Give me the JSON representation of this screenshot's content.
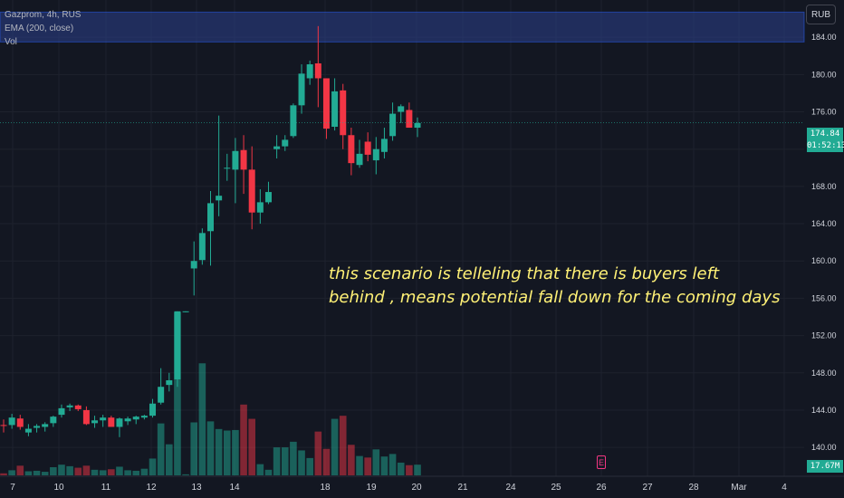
{
  "legend": {
    "symbol": "Gazprom, 4h, RUS",
    "indicator": "EMA (200, close)",
    "volume": "Vol"
  },
  "currency_label": "RUB",
  "last_price": "174.84",
  "countdown": "01:52:13",
  "volume_tag": "17.67M",
  "annotation": {
    "line1": "this scenario is telleling that there is buyers left",
    "line2": "behind , means potential fall down for the coming days"
  },
  "event_icon": "earnings-event-icon",
  "colors": {
    "background": "#131722",
    "up": "#22ab94",
    "down": "#f23645",
    "up_volume": "#22ab94",
    "down_volume": "#f23645",
    "grid": "#1e222d",
    "axis_text": "#d1d4dc",
    "zone": "#2b3f8c",
    "annotation": "#fff176"
  },
  "chart_data": {
    "type": "candlestick",
    "title": "Gazprom, 4h, RUS",
    "ylabel": "RUB",
    "ylim": [
      137,
      188
    ],
    "y_ticks": [
      "184.00",
      "180.00",
      "176.00",
      "172.00",
      "168.00",
      "164.00",
      "160.00",
      "156.00",
      "152.00",
      "148.00",
      "144.00",
      "140.00"
    ],
    "x_ticks": [
      "7",
      "10",
      "11",
      "12",
      "13",
      "14",
      "18",
      "19",
      "20",
      "21",
      "24",
      "25",
      "26",
      "27",
      "28",
      "Mar",
      "4"
    ],
    "current_price": 174.84,
    "resistance_zone": [
      183.5,
      186.7
    ],
    "candles": [
      {
        "o": 142.4,
        "h": 143.0,
        "l": 141.6,
        "c": 142.3,
        "v": 0.4
      },
      {
        "o": 142.4,
        "h": 143.6,
        "l": 142.0,
        "c": 143.2,
        "v": 1.0
      },
      {
        "o": 143.1,
        "h": 143.5,
        "l": 141.9,
        "c": 142.2,
        "v": 1.9
      },
      {
        "o": 141.6,
        "h": 142.5,
        "l": 141.2,
        "c": 142.0,
        "v": 0.8
      },
      {
        "o": 142.1,
        "h": 142.5,
        "l": 141.6,
        "c": 142.3,
        "v": 0.9
      },
      {
        "o": 142.2,
        "h": 142.7,
        "l": 141.7,
        "c": 142.5,
        "v": 0.7
      },
      {
        "o": 142.6,
        "h": 143.4,
        "l": 142.2,
        "c": 143.3,
        "v": 1.6
      },
      {
        "o": 143.5,
        "h": 144.6,
        "l": 143.2,
        "c": 144.2,
        "v": 2.1
      },
      {
        "o": 144.3,
        "h": 144.7,
        "l": 143.9,
        "c": 144.5,
        "v": 1.8
      },
      {
        "o": 144.5,
        "h": 144.6,
        "l": 143.9,
        "c": 144.1,
        "v": 1.5
      },
      {
        "o": 144.0,
        "h": 144.4,
        "l": 142.4,
        "c": 142.5,
        "v": 1.9
      },
      {
        "o": 142.6,
        "h": 143.4,
        "l": 142.1,
        "c": 142.9,
        "v": 1.1
      },
      {
        "o": 142.9,
        "h": 143.5,
        "l": 142.2,
        "c": 143.2,
        "v": 1.0
      },
      {
        "o": 143.2,
        "h": 143.4,
        "l": 142.2,
        "c": 142.2,
        "v": 1.2
      },
      {
        "o": 142.2,
        "h": 143.2,
        "l": 141.1,
        "c": 143.1,
        "v": 1.7
      },
      {
        "o": 142.8,
        "h": 143.3,
        "l": 142.4,
        "c": 143.1,
        "v": 1.0
      },
      {
        "o": 143.0,
        "h": 143.4,
        "l": 142.5,
        "c": 143.3,
        "v": 0.9
      },
      {
        "o": 143.2,
        "h": 143.5,
        "l": 143.0,
        "c": 143.4,
        "v": 1.3
      },
      {
        "o": 143.4,
        "h": 145.2,
        "l": 143.2,
        "c": 144.7,
        "v": 3.3
      },
      {
        "o": 144.8,
        "h": 148.5,
        "l": 144.6,
        "c": 146.5,
        "v": 10.2
      },
      {
        "o": 146.7,
        "h": 148.0,
        "l": 146.0,
        "c": 147.2,
        "v": 6.1
      },
      {
        "o": 147.3,
        "h": 154.6,
        "l": 146.5,
        "c": 154.6,
        "v": 32.0
      },
      {
        "o": 154.6,
        "h": 154.6,
        "l": 154.5,
        "c": 154.6,
        "v": 0.2
      },
      {
        "o": 159.2,
        "h": 162.1,
        "l": 156.3,
        "c": 160.0,
        "v": 10.4
      },
      {
        "o": 160.1,
        "h": 163.5,
        "l": 159.6,
        "c": 163.0,
        "v": 22.0
      },
      {
        "o": 163.2,
        "h": 167.5,
        "l": 159.5,
        "c": 166.2,
        "v": 10.6
      },
      {
        "o": 166.5,
        "h": 175.6,
        "l": 164.8,
        "c": 167.0,
        "v": 9.1
      },
      {
        "o": 170.0,
        "h": 171.5,
        "l": 168.6,
        "c": 170.0,
        "v": 8.8
      },
      {
        "o": 169.8,
        "h": 173.2,
        "l": 166.2,
        "c": 171.8,
        "v": 8.9
      },
      {
        "o": 171.9,
        "h": 173.5,
        "l": 167.2,
        "c": 169.8,
        "v": 13.9
      },
      {
        "o": 169.8,
        "h": 172.3,
        "l": 163.4,
        "c": 165.2,
        "v": 11.1
      },
      {
        "o": 165.2,
        "h": 167.7,
        "l": 164.0,
        "c": 166.3,
        "v": 2.2
      },
      {
        "o": 166.3,
        "h": 168.5,
        "l": 166.1,
        "c": 167.4,
        "v": 1.1
      },
      {
        "o": 172.0,
        "h": 173.5,
        "l": 171.0,
        "c": 172.3,
        "v": 5.5
      },
      {
        "o": 172.3,
        "h": 173.5,
        "l": 171.8,
        "c": 173.0,
        "v": 5.5
      },
      {
        "o": 173.4,
        "h": 176.9,
        "l": 173.2,
        "c": 176.7,
        "v": 6.6
      },
      {
        "o": 176.7,
        "h": 181.1,
        "l": 175.8,
        "c": 180.1,
        "v": 4.9
      },
      {
        "o": 179.6,
        "h": 181.5,
        "l": 178.9,
        "c": 181.1,
        "v": 3.4
      },
      {
        "o": 181.2,
        "h": 185.2,
        "l": 176.5,
        "c": 179.6,
        "v": 8.6
      },
      {
        "o": 179.6,
        "h": 179.6,
        "l": 173.1,
        "c": 174.2,
        "v": 5.2
      },
      {
        "o": 174.4,
        "h": 179.6,
        "l": 174.0,
        "c": 178.2,
        "v": 11.1
      },
      {
        "o": 178.3,
        "h": 179.0,
        "l": 172.0,
        "c": 173.5,
        "v": 11.7
      },
      {
        "o": 173.5,
        "h": 174.3,
        "l": 169.2,
        "c": 170.5,
        "v": 6.0
      },
      {
        "o": 170.3,
        "h": 173.0,
        "l": 170.0,
        "c": 171.5,
        "v": 3.8
      },
      {
        "o": 172.8,
        "h": 173.8,
        "l": 170.7,
        "c": 171.4,
        "v": 3.5
      },
      {
        "o": 170.8,
        "h": 173.3,
        "l": 169.3,
        "c": 172.0,
        "v": 5.1
      },
      {
        "o": 171.7,
        "h": 174.3,
        "l": 171.0,
        "c": 173.1,
        "v": 3.7
      },
      {
        "o": 173.4,
        "h": 177.0,
        "l": 172.9,
        "c": 175.8,
        "v": 4.2
      },
      {
        "o": 176.0,
        "h": 176.8,
        "l": 174.8,
        "c": 176.6,
        "v": 2.5
      },
      {
        "o": 176.2,
        "h": 177.0,
        "l": 174.3,
        "c": 174.3,
        "v": 2.0
      },
      {
        "o": 174.3,
        "h": 175.4,
        "l": 173.3,
        "c": 174.8,
        "v": 2.1
      }
    ]
  }
}
